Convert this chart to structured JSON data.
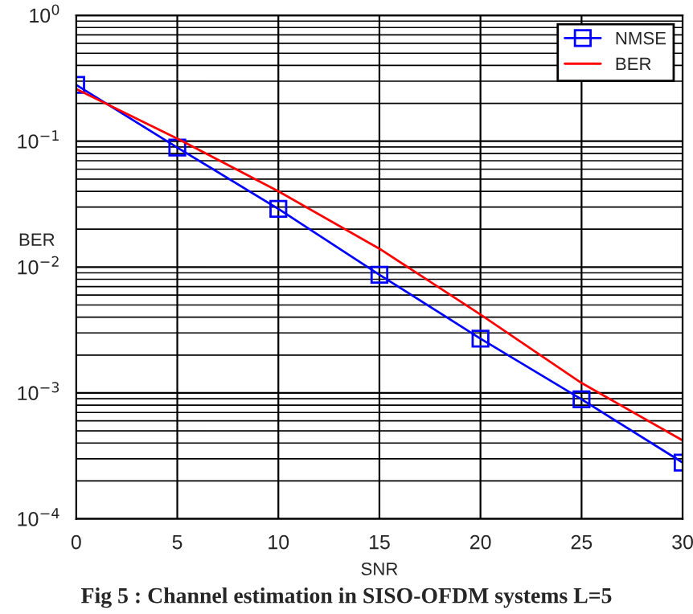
{
  "chart_data": {
    "type": "line",
    "xlabel": "SNR",
    "ylabel": "BER",
    "log": "y",
    "x": [
      0,
      5,
      10,
      15,
      20,
      25,
      30
    ],
    "series": [
      {
        "name": "NMSE",
        "color": "#0000ff",
        "marker": "square",
        "values": [
          0.28,
          0.089,
          0.029,
          0.0087,
          0.0027,
          0.00089,
          0.00028
        ]
      },
      {
        "name": "BER",
        "color": "#ff0000",
        "marker": "none",
        "values": [
          0.26,
          0.105,
          0.04,
          0.014,
          0.0042,
          0.0012,
          0.00042
        ]
      }
    ],
    "xlim": [
      0,
      30
    ],
    "xticks": [
      0,
      5,
      10,
      15,
      20,
      25,
      30
    ],
    "ylim": [
      0.0001,
      1
    ],
    "yticks": [
      {
        "value": 0.0001,
        "label": "10$^{−4}$"
      },
      {
        "value": 0.001,
        "label": "10$^{−3}$"
      },
      {
        "value": 0.01,
        "label": "10$^{−2}$"
      },
      {
        "value": 0.1,
        "label": "10$^{−1}$"
      },
      {
        "value": 1,
        "label": "10$^{0}$"
      }
    ],
    "grid": true,
    "legend": "top right",
    "line_style": "solid",
    "annotations": [
      "Fig 5 : Channel estimation in SISO-OFDM systems L=5"
    ]
  }
}
